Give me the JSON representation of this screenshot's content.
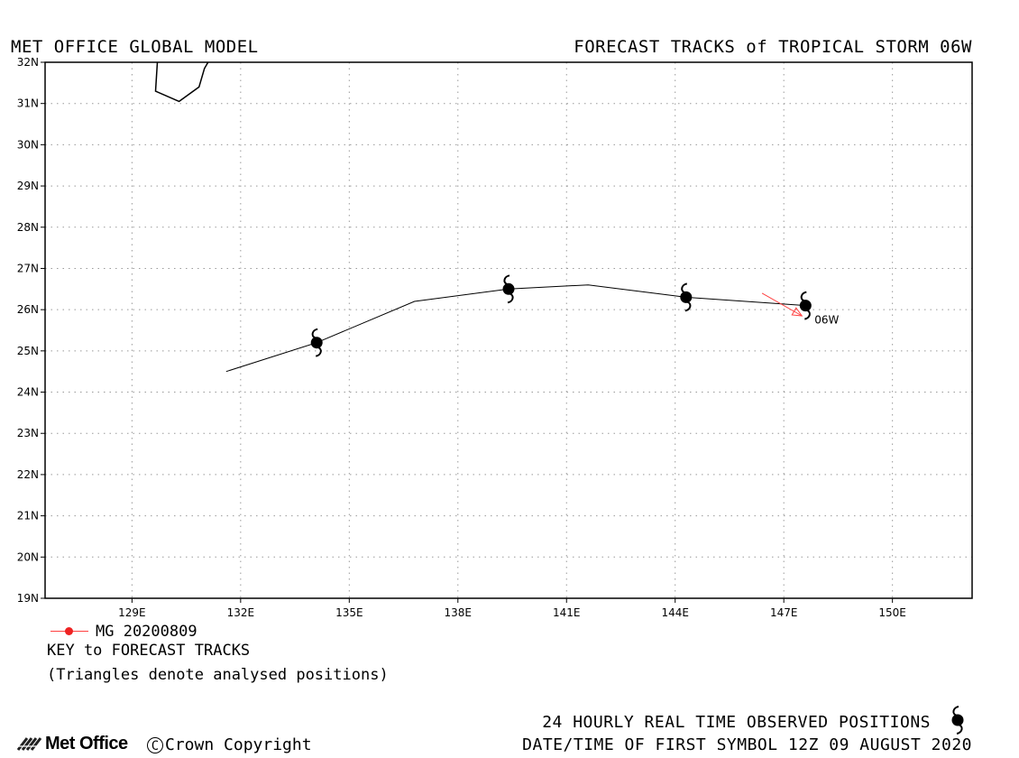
{
  "header": {
    "left": "MET OFFICE GLOBAL MODEL",
    "right": "FORECAST TRACKS of TROPICAL STORM 06W"
  },
  "map": {
    "lon_range": [
      126.6,
      152.2
    ],
    "lat_range": [
      19,
      32
    ],
    "x_ticks": [
      "129E",
      "132E",
      "135E",
      "138E",
      "141E",
      "144E",
      "147E",
      "150E"
    ],
    "x_tick_values": [
      129,
      132,
      135,
      138,
      141,
      144,
      147,
      150
    ],
    "y_ticks": [
      "19N",
      "20N",
      "21N",
      "22N",
      "23N",
      "24N",
      "25N",
      "26N",
      "27N",
      "28N",
      "29N",
      "30N",
      "31N",
      "32N"
    ],
    "y_tick_values": [
      19,
      20,
      21,
      22,
      23,
      24,
      25,
      26,
      27,
      28,
      29,
      30,
      31,
      32
    ],
    "gridlines": true,
    "coastline": [
      [
        129.7,
        32.0
      ],
      [
        129.65,
        31.3
      ],
      [
        130.3,
        31.05
      ],
      [
        130.85,
        31.4
      ],
      [
        131.0,
        31.85
      ],
      [
        131.1,
        32.0
      ]
    ],
    "forecast_track": {
      "color": "#000000",
      "points": [
        [
          131.6,
          24.5
        ],
        [
          134.1,
          25.2
        ],
        [
          136.8,
          26.2
        ],
        [
          139.4,
          26.5
        ],
        [
          141.6,
          26.6
        ],
        [
          144.3,
          26.3
        ],
        [
          147.6,
          26.1
        ]
      ],
      "symbols": [
        [
          147.6,
          26.1
        ],
        [
          144.3,
          26.3
        ],
        [
          139.4,
          26.5
        ],
        [
          134.1,
          25.2
        ]
      ]
    },
    "analysed_track": {
      "color": "#ff4040",
      "points": [
        [
          146.4,
          26.4
        ],
        [
          147.5,
          25.85
        ]
      ]
    },
    "storm_label": "06W"
  },
  "key": {
    "entries": [
      {
        "label": "MG 20200809",
        "color": "#ee2222"
      }
    ],
    "title": "KEY to FORECAST TRACKS",
    "note": "(Triangles denote analysed positions)"
  },
  "footer": {
    "observed": "24 HOURLY REAL TIME OBSERVED POSITIONS",
    "first_symbol": "DATE/TIME OF FIRST SYMBOL 12Z 09 AUGUST 2020",
    "logo": "Met Office",
    "copyright": "Crown Copyright"
  },
  "icons": {
    "storm": "tropical-cyclone-icon",
    "logo": "met-office-stripes-icon",
    "copyright": "copyright-icon"
  }
}
